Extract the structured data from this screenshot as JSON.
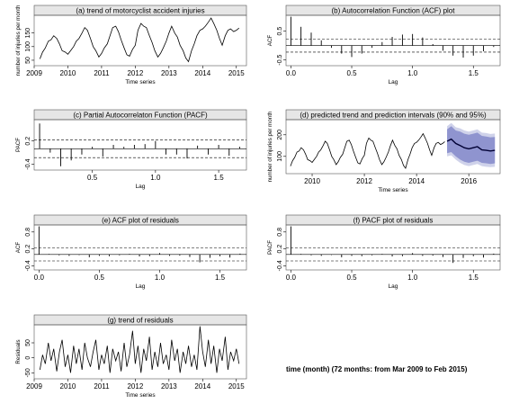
{
  "footnote": "time (month) (72 months: from Mar 2009 to Feb 2015)",
  "chart_data": [
    {
      "id": "a",
      "type": "line",
      "title": "(a) trend of motorcyclist accident injuries",
      "xlabel": "Time series",
      "ylabel": "number of injuries per month",
      "xticks": [
        "2009",
        "2010",
        "2011",
        "2012",
        "2013",
        "2014",
        "2015"
      ],
      "yticks": [
        "50",
        "100",
        "150"
      ],
      "xlim": [
        2009,
        2015.3
      ],
      "ylim": [
        30,
        215
      ],
      "x": [
        2009.17,
        2009.25,
        2009.33,
        2009.42,
        2009.5,
        2009.58,
        2009.67,
        2009.75,
        2009.83,
        2009.92,
        2010.0,
        2010.08,
        2010.17,
        2010.25,
        2010.33,
        2010.42,
        2010.5,
        2010.58,
        2010.67,
        2010.75,
        2010.83,
        2010.92,
        2011.0,
        2011.08,
        2011.17,
        2011.25,
        2011.33,
        2011.42,
        2011.5,
        2011.58,
        2011.67,
        2011.75,
        2011.83,
        2011.92,
        2012.0,
        2012.08,
        2012.17,
        2012.25,
        2012.33,
        2012.42,
        2012.5,
        2012.58,
        2012.67,
        2012.75,
        2012.83,
        2012.92,
        2013.0,
        2013.08,
        2013.17,
        2013.25,
        2013.33,
        2013.42,
        2013.5,
        2013.58,
        2013.67,
        2013.75,
        2013.83,
        2013.92,
        2014.0,
        2014.08,
        2014.17,
        2014.25,
        2014.33,
        2014.42,
        2014.5,
        2014.58,
        2014.67,
        2014.75,
        2014.83,
        2014.92,
        2015.0,
        2015.08
      ],
      "values": [
        55,
        80,
        95,
        120,
        125,
        140,
        130,
        110,
        85,
        80,
        72,
        85,
        100,
        120,
        130,
        150,
        170,
        160,
        130,
        100,
        85,
        62,
        75,
        95,
        110,
        140,
        170,
        175,
        155,
        125,
        95,
        70,
        65,
        90,
        105,
        160,
        185,
        175,
        170,
        140,
        115,
        85,
        62,
        75,
        95,
        120,
        150,
        175,
        150,
        135,
        105,
        85,
        58,
        45,
        85,
        110,
        140,
        160,
        165,
        175,
        190,
        205,
        185,
        160,
        130,
        105,
        140,
        160,
        165,
        155,
        160,
        168
      ]
    },
    {
      "id": "b",
      "type": "acf",
      "title": "(b) Autocorrelation Function (ACF) plot",
      "xlabel": "Lag",
      "ylabel": "ACF",
      "xticks": [
        "0.0",
        "0.5",
        "1.0",
        "1.5"
      ],
      "yticks": [
        "-0.5",
        "0.5"
      ],
      "xlim": [
        -0.04,
        1.72
      ],
      "ylim": [
        -0.7,
        1.05
      ],
      "conf": 0.23,
      "x": [
        0.0,
        0.083,
        0.167,
        0.25,
        0.333,
        0.417,
        0.5,
        0.583,
        0.667,
        0.75,
        0.833,
        0.917,
        1.0,
        1.083,
        1.167,
        1.25,
        1.333,
        1.417,
        1.5,
        1.583,
        1.667
      ],
      "values": [
        1.0,
        0.65,
        0.45,
        0.18,
        -0.08,
        -0.28,
        -0.4,
        -0.28,
        -0.08,
        0.12,
        0.3,
        0.38,
        0.4,
        0.28,
        0.05,
        -0.18,
        -0.35,
        -0.42,
        -0.35,
        -0.2,
        -0.05
      ]
    },
    {
      "id": "c",
      "type": "acf",
      "title": "(c) Partial Autocorrelaton Function (PACF)",
      "xlabel": "Lag",
      "ylabel": "PACF",
      "xticks": [
        "0.5",
        "1.0",
        "1.5"
      ],
      "yticks": [
        "-0.4",
        "0.2"
      ],
      "xlim": [
        0.04,
        1.72
      ],
      "ylim": [
        -0.55,
        0.75
      ],
      "conf": 0.23,
      "x": [
        0.083,
        0.167,
        0.25,
        0.333,
        0.417,
        0.5,
        0.583,
        0.667,
        0.75,
        0.833,
        0.917,
        1.0,
        1.083,
        1.167,
        1.25,
        1.333,
        1.417,
        1.5,
        1.583,
        1.667
      ],
      "values": [
        0.65,
        -0.1,
        -0.45,
        -0.3,
        -0.15,
        0.05,
        -0.2,
        0.1,
        0.05,
        0.1,
        0.12,
        0.2,
        -0.15,
        -0.15,
        -0.25,
        0.08,
        -0.15,
        0.1,
        -0.18,
        0.05
      ]
    },
    {
      "id": "d",
      "type": "line",
      "title": "(d) predicted trend and prediction intervals (90% and 95%)",
      "xlabel": "Time series",
      "ylabel": "number of injuries per month",
      "xticks": [
        "2010",
        "2012",
        "2014",
        "2016"
      ],
      "yticks": [
        "100",
        "200"
      ],
      "xlim": [
        2009,
        2017.2
      ],
      "ylim": [
        20,
        270
      ],
      "x": [
        2009.17,
        2009.25,
        2009.33,
        2009.42,
        2009.5,
        2009.58,
        2009.67,
        2009.75,
        2009.83,
        2009.92,
        2010.0,
        2010.08,
        2010.17,
        2010.25,
        2010.33,
        2010.42,
        2010.5,
        2010.58,
        2010.67,
        2010.75,
        2010.83,
        2010.92,
        2011.0,
        2011.08,
        2011.17,
        2011.25,
        2011.33,
        2011.42,
        2011.5,
        2011.58,
        2011.67,
        2011.75,
        2011.83,
        2011.92,
        2012.0,
        2012.08,
        2012.17,
        2012.25,
        2012.33,
        2012.42,
        2012.5,
        2012.58,
        2012.67,
        2012.75,
        2012.83,
        2012.92,
        2013.0,
        2013.08,
        2013.17,
        2013.25,
        2013.33,
        2013.42,
        2013.5,
        2013.58,
        2013.67,
        2013.75,
        2013.83,
        2013.92,
        2014.0,
        2014.08,
        2014.17,
        2014.25,
        2014.33,
        2014.42,
        2014.5,
        2014.58,
        2014.67,
        2014.75,
        2014.83,
        2014.92,
        2015.0,
        2015.08
      ],
      "values": [
        55,
        80,
        95,
        120,
        125,
        140,
        130,
        110,
        85,
        80,
        72,
        85,
        100,
        120,
        130,
        150,
        170,
        160,
        130,
        100,
        85,
        62,
        75,
        95,
        110,
        140,
        170,
        175,
        155,
        125,
        95,
        70,
        65,
        90,
        105,
        160,
        185,
        175,
        170,
        140,
        115,
        85,
        62,
        75,
        95,
        120,
        150,
        175,
        150,
        135,
        105,
        85,
        58,
        45,
        85,
        110,
        140,
        160,
        165,
        175,
        190,
        205,
        185,
        160,
        130,
        105,
        140,
        160,
        165,
        155,
        160,
        168
      ],
      "forecast": {
        "x": [
          2015.17,
          2015.33,
          2015.5,
          2015.67,
          2015.83,
          2016.0,
          2016.17,
          2016.33,
          2016.5,
          2016.67,
          2016.83,
          2017.0
        ],
        "values": [
          170,
          180,
          160,
          150,
          140,
          135,
          140,
          145,
          130,
          128,
          125,
          128
        ],
        "pi90": [
          [
            115,
            225
          ],
          [
            120,
            240
          ],
          [
            100,
            220
          ],
          [
            85,
            215
          ],
          [
            75,
            205
          ],
          [
            70,
            200
          ],
          [
            75,
            205
          ],
          [
            80,
            210
          ],
          [
            70,
            195
          ],
          [
            68,
            192
          ],
          [
            65,
            188
          ],
          [
            68,
            190
          ]
        ],
        "pi95": [
          [
            100,
            240
          ],
          [
            105,
            255
          ],
          [
            85,
            235
          ],
          [
            70,
            230
          ],
          [
            60,
            220
          ],
          [
            55,
            215
          ],
          [
            60,
            220
          ],
          [
            65,
            225
          ],
          [
            55,
            210
          ],
          [
            52,
            208
          ],
          [
            50,
            204
          ],
          [
            52,
            206
          ]
        ]
      },
      "colors": {
        "series": "#000000",
        "pi90": "#8f94cf",
        "pi95": "#cfd2ea",
        "forecast": "#000033"
      }
    },
    {
      "id": "e",
      "type": "acf",
      "title": "(e) ACF plot of residuals",
      "xlabel": "Lag",
      "ylabel": "ACF",
      "xticks": [
        "0.0",
        "0.5",
        "1.0",
        "1.5"
      ],
      "yticks": [
        "-0.4",
        "0.2",
        "0.8"
      ],
      "xlim": [
        -0.04,
        1.72
      ],
      "ylim": [
        -0.55,
        1.05
      ],
      "conf": 0.23,
      "x": [
        0.0,
        0.083,
        0.167,
        0.25,
        0.333,
        0.417,
        0.5,
        0.583,
        0.667,
        0.75,
        0.833,
        0.917,
        1.0,
        1.083,
        1.167,
        1.25,
        1.333,
        1.417,
        1.5,
        1.583,
        1.667
      ],
      "values": [
        1.0,
        0.02,
        -0.03,
        -0.05,
        -0.02,
        -0.1,
        -0.05,
        -0.06,
        -0.03,
        0.02,
        -0.07,
        -0.06,
        0.05,
        -0.05,
        -0.04,
        -0.09,
        -0.28,
        -0.12,
        -0.06,
        -0.11,
        0.03
      ]
    },
    {
      "id": "f",
      "type": "acf",
      "title": "(f) PACF plot of residuals",
      "xlabel": "Lag",
      "ylabel": "PACF",
      "xticks": [
        "0.0",
        "0.5",
        "1.0",
        "1.5"
      ],
      "yticks": [
        "-0.4",
        "0.2",
        "0.8"
      ],
      "xlim": [
        -0.04,
        1.72
      ],
      "ylim": [
        -0.55,
        1.05
      ],
      "conf": 0.23,
      "x": [
        0.0,
        0.083,
        0.167,
        0.25,
        0.333,
        0.417,
        0.5,
        0.583,
        0.667,
        0.75,
        0.833,
        0.917,
        1.0,
        1.083,
        1.167,
        1.25,
        1.333,
        1.417,
        1.5,
        1.583,
        1.667
      ],
      "values": [
        1.0,
        0.02,
        -0.03,
        -0.05,
        -0.02,
        -0.1,
        -0.05,
        -0.06,
        -0.03,
        0.02,
        -0.07,
        -0.06,
        0.05,
        -0.05,
        -0.04,
        -0.09,
        -0.3,
        -0.12,
        -0.06,
        -0.11,
        0.03
      ]
    },
    {
      "id": "g",
      "type": "line",
      "title": "(g) trend of residuals",
      "xlabel": "Time series",
      "ylabel": "Residuals",
      "xticks": [
        "2009",
        "2010",
        "2011",
        "2012",
        "2013",
        "2014",
        "2015"
      ],
      "yticks": [
        "-50",
        "0",
        "50"
      ],
      "xlim": [
        2009,
        2015.3
      ],
      "ylim": [
        -70,
        110
      ],
      "x": [
        2009.17,
        2009.25,
        2009.33,
        2009.42,
        2009.5,
        2009.58,
        2009.67,
        2009.75,
        2009.83,
        2009.92,
        2010.0,
        2010.08,
        2010.17,
        2010.25,
        2010.33,
        2010.42,
        2010.5,
        2010.58,
        2010.67,
        2010.75,
        2010.83,
        2010.92,
        2011.0,
        2011.08,
        2011.17,
        2011.25,
        2011.33,
        2011.42,
        2011.5,
        2011.58,
        2011.67,
        2011.75,
        2011.83,
        2011.92,
        2012.0,
        2012.08,
        2012.17,
        2012.25,
        2012.33,
        2012.42,
        2012.5,
        2012.58,
        2012.67,
        2012.75,
        2012.83,
        2012.92,
        2013.0,
        2013.08,
        2013.17,
        2013.25,
        2013.33,
        2013.42,
        2013.5,
        2013.58,
        2013.67,
        2013.75,
        2013.83,
        2013.92,
        2014.0,
        2014.08,
        2014.17,
        2014.25,
        2014.33,
        2014.42,
        2014.5,
        2014.58,
        2014.67,
        2014.75,
        2014.83,
        2014.92,
        2015.0,
        2015.08
      ],
      "values": [
        -40,
        10,
        -20,
        50,
        -10,
        30,
        -45,
        20,
        60,
        -30,
        10,
        -50,
        40,
        -20,
        30,
        -40,
        50,
        0,
        -30,
        20,
        60,
        -40,
        10,
        -20,
        40,
        -50,
        30,
        -10,
        20,
        -45,
        50,
        -30,
        10,
        90,
        -20,
        40,
        -50,
        30,
        -10,
        70,
        -40,
        20,
        -30,
        50,
        -20,
        10,
        -40,
        60,
        -10,
        30,
        -50,
        20,
        -20,
        40,
        -30,
        10,
        -40,
        105,
        20,
        -30,
        60,
        -20,
        40,
        -50,
        30,
        -10,
        70,
        -40,
        20,
        -10,
        30,
        -20
      ]
    }
  ]
}
